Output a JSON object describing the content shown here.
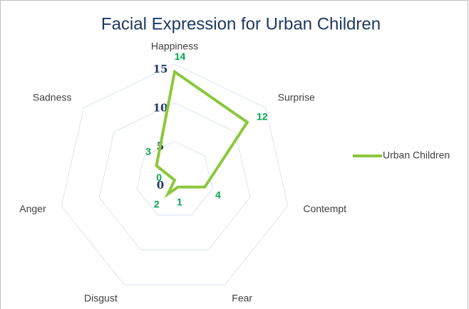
{
  "chart_data": {
    "type": "radar",
    "title": "Facial Expression for Urban Children",
    "categories": [
      "Happiness",
      "Surprise",
      "Contempt",
      "Fear",
      "Disgust",
      "Anger",
      "Sadness"
    ],
    "series": [
      {
        "name": "Urban Children",
        "color": "#8cc83c",
        "values": [
          14,
          12,
          4,
          1,
          2,
          0,
          3
        ]
      }
    ],
    "ylim": [
      0,
      15
    ],
    "yticks": [
      0,
      5,
      10,
      15
    ],
    "grid": true,
    "legend": "right"
  }
}
